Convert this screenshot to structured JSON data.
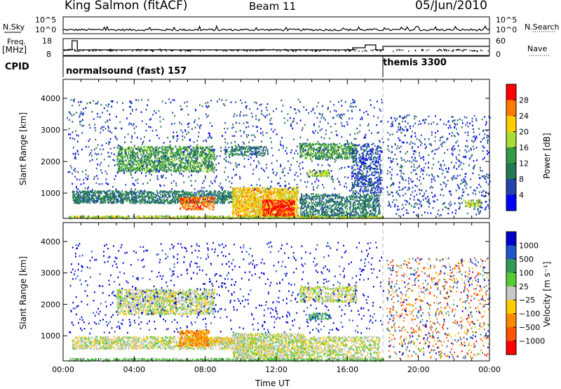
{
  "header": {
    "station": "King Salmon (fitACF)",
    "beam": "Beam 11",
    "date": "05/Jun/2010"
  },
  "top_panels": {
    "nsky_label": "N.Sky",
    "nsky_ticks": [
      "10^5",
      "10^0"
    ],
    "nsearch_label": "N.Search",
    "nsearch_ticks": [
      "10^5",
      "10^0"
    ],
    "freq_label": "Freq.",
    "freq_unit": "[MHz]",
    "freq_ticks": [
      "18",
      "8"
    ],
    "nave_label": "Nave",
    "nave_ticks": [
      "60",
      "0"
    ],
    "cpid_label": "CPID",
    "cpid_segments": [
      {
        "label": "normalsound (fast) 157",
        "start_h": 0,
        "end_h": 18
      },
      {
        "label": "themis 3300",
        "start_h": 18,
        "end_h": 24
      }
    ]
  },
  "chart_data": [
    {
      "type": "heatmap",
      "title": "",
      "ylabel": "Slant Range [km]",
      "ylim": [
        200,
        4600
      ],
      "yticks": [
        1000,
        2000,
        3000,
        4000
      ],
      "xlim": [
        0,
        24
      ],
      "colorbar": {
        "label": "Power [dB]",
        "ticks": [
          "28",
          "24",
          "20",
          "16",
          "12",
          "8",
          "4"
        ],
        "colors": [
          "#ff0000",
          "#ff7a00",
          "#ffcc00",
          "#aadd33",
          "#339944",
          "#227755",
          "#2244aa",
          "#0000ff"
        ]
      },
      "regions": [
        {
          "t0": 0.3,
          "t1": 18,
          "r0": 220,
          "r1": 300,
          "level": 4,
          "density": 0.9
        },
        {
          "t0": 0.5,
          "t1": 9.5,
          "r0": 700,
          "r1": 1100,
          "level": 2,
          "density": 0.65
        },
        {
          "t0": 6.5,
          "t1": 8.5,
          "r0": 500,
          "r1": 900,
          "level": 6,
          "density": 0.6
        },
        {
          "t0": 9.5,
          "t1": 13.2,
          "r0": 300,
          "r1": 1200,
          "level": 5,
          "density": 0.75
        },
        {
          "t0": 11.2,
          "t1": 13,
          "r0": 300,
          "r1": 800,
          "level": 7,
          "density": 0.7
        },
        {
          "t0": 13.3,
          "t1": 17.8,
          "r0": 300,
          "r1": 1000,
          "level": 2,
          "density": 0.5
        },
        {
          "t0": 3,
          "t1": 8.5,
          "r0": 1700,
          "r1": 2500,
          "level": 3,
          "density": 0.55
        },
        {
          "t0": 9,
          "t1": 11.5,
          "r0": 2200,
          "r1": 2500,
          "level": 2,
          "density": 0.4
        },
        {
          "t0": 13.3,
          "t1": 16.5,
          "r0": 2100,
          "r1": 2600,
          "level": 3,
          "density": 0.55
        },
        {
          "t0": 13.8,
          "t1": 15,
          "r0": 1550,
          "r1": 1750,
          "level": 4,
          "density": 0.6
        },
        {
          "t0": 16.2,
          "t1": 17.9,
          "r0": 1000,
          "r1": 2600,
          "level": 1,
          "density": 0.3
        },
        {
          "t0": 0.2,
          "t1": 18,
          "r0": 1100,
          "r1": 4000,
          "level": 1,
          "density": 0.04
        },
        {
          "t0": 18.2,
          "t1": 24,
          "r0": 300,
          "r1": 3500,
          "level": 1,
          "density": 0.07
        },
        {
          "t0": 22.5,
          "t1": 23.5,
          "r0": 600,
          "r1": 800,
          "level": 4,
          "density": 0.5
        }
      ]
    },
    {
      "type": "heatmap",
      "title": "",
      "ylabel": "Slant Range [km]",
      "ylim": [
        200,
        4600
      ],
      "yticks": [
        1000,
        2000,
        3000,
        4000
      ],
      "xlim": [
        0,
        24
      ],
      "xlabel": "Time UT",
      "xticks": [
        "00:00",
        "04:00",
        "08:00",
        "12:00",
        "16:00",
        "20:00",
        "00:00"
      ],
      "colorbar": {
        "label": "Velocity [m s⁻¹]",
        "ticks": [
          "1000",
          "500",
          "100",
          "25",
          "−25",
          "−100",
          "−500",
          "−1000"
        ],
        "colors": [
          "#0000cc",
          "#2255cc",
          "#339955",
          "#55cc33",
          "#c8c8c8",
          "#ffcc00",
          "#ff8800",
          "#ff5500",
          "#ff0000"
        ]
      },
      "regions": [
        {
          "t0": 0.3,
          "t1": 18,
          "r0": 220,
          "r1": 300,
          "level": 3,
          "density": 0.85
        },
        {
          "t0": 0.5,
          "t1": 9.5,
          "r0": 600,
          "r1": 1000,
          "level": 4,
          "density": 0.6
        },
        {
          "t0": 6.5,
          "t1": 8.2,
          "r0": 700,
          "r1": 1200,
          "level": 6,
          "density": 0.7
        },
        {
          "t0": 8.2,
          "t1": 10,
          "r0": 800,
          "r1": 950,
          "level": 5,
          "density": 0.5
        },
        {
          "t0": 9.5,
          "t1": 13.5,
          "r0": 300,
          "r1": 1100,
          "level": 4,
          "density": 0.7
        },
        {
          "t0": 13.3,
          "t1": 17.8,
          "r0": 300,
          "r1": 1000,
          "level": 4,
          "density": 0.45
        },
        {
          "t0": 3,
          "t1": 8.5,
          "r0": 1700,
          "r1": 2500,
          "level": 4,
          "density": 0.55
        },
        {
          "t0": 13.3,
          "t1": 16.5,
          "r0": 2100,
          "r1": 2600,
          "level": 4,
          "density": 0.5
        },
        {
          "t0": 13.8,
          "t1": 15,
          "r0": 1550,
          "r1": 1750,
          "level": 2,
          "density": 0.6
        },
        {
          "t0": 0.2,
          "t1": 18,
          "r0": 1100,
          "r1": 4000,
          "level": 0,
          "density": 0.03
        },
        {
          "t0": 18.2,
          "t1": 24,
          "r0": 300,
          "r1": 3500,
          "level": 7,
          "density": 0.035
        },
        {
          "t0": 18.2,
          "t1": 24,
          "r0": 300,
          "r1": 3500,
          "level": 1,
          "density": 0.035
        },
        {
          "t0": 18.2,
          "t1": 24,
          "r0": 300,
          "r1": 3500,
          "level": 5,
          "density": 0.02
        }
      ]
    }
  ]
}
